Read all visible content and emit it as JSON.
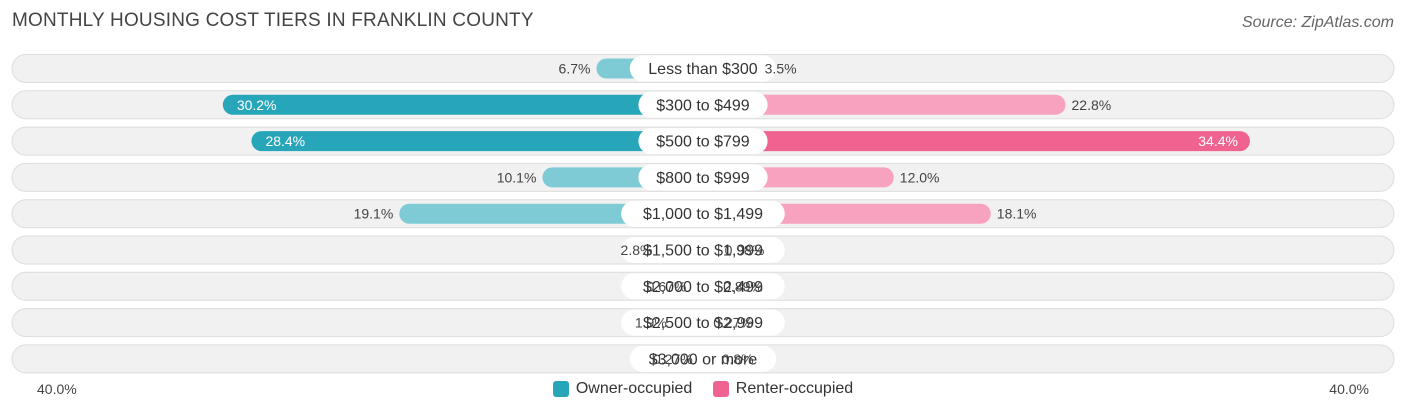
{
  "chart_data": {
    "type": "bar",
    "orientation": "diverging-horizontal",
    "title": "MONTHLY HOUSING COST TIERS IN FRANKLIN COUNTY",
    "source": "Source: ZipAtlas.com",
    "categories": [
      "Less than $300",
      "$300 to $499",
      "$500 to $799",
      "$800 to $999",
      "$1,000 to $1,499",
      "$1,500 to $1,999",
      "$2,000 to $2,499",
      "$2,500 to $2,999",
      "$3,000 or more"
    ],
    "series": [
      {
        "name": "Owner-occupied",
        "values": [
          6.7,
          30.2,
          28.4,
          10.1,
          19.1,
          2.8,
          0.67,
          1.9,
          0.27
        ],
        "labels": [
          "6.7%",
          "30.2%",
          "28.4%",
          "10.1%",
          "19.1%",
          "2.8%",
          "0.67%",
          "1.9%",
          "0.27%"
        ]
      },
      {
        "name": "Renter-occupied",
        "values": [
          3.5,
          22.8,
          34.4,
          12.0,
          18.1,
          0.98,
          0.89,
          0.27,
          0.8
        ],
        "labels": [
          "3.5%",
          "22.8%",
          "34.4%",
          "12.0%",
          "18.1%",
          "0.98%",
          "0.89%",
          "0.27%",
          "0.8%"
        ]
      }
    ],
    "axis": {
      "min_label": "40.0%",
      "max_label": "40.0%",
      "range": [
        0,
        40
      ]
    },
    "legend": [
      "Owner-occupied",
      "Renter-occupied"
    ],
    "colors": {
      "owner_dark": "#26a6b8",
      "owner_light": "#7ecbd6",
      "renter_dark": "#f0628f",
      "renter_light": "#f7a2be",
      "row_bg": "#f1f1f1",
      "row_border": "#dddddd"
    }
  }
}
